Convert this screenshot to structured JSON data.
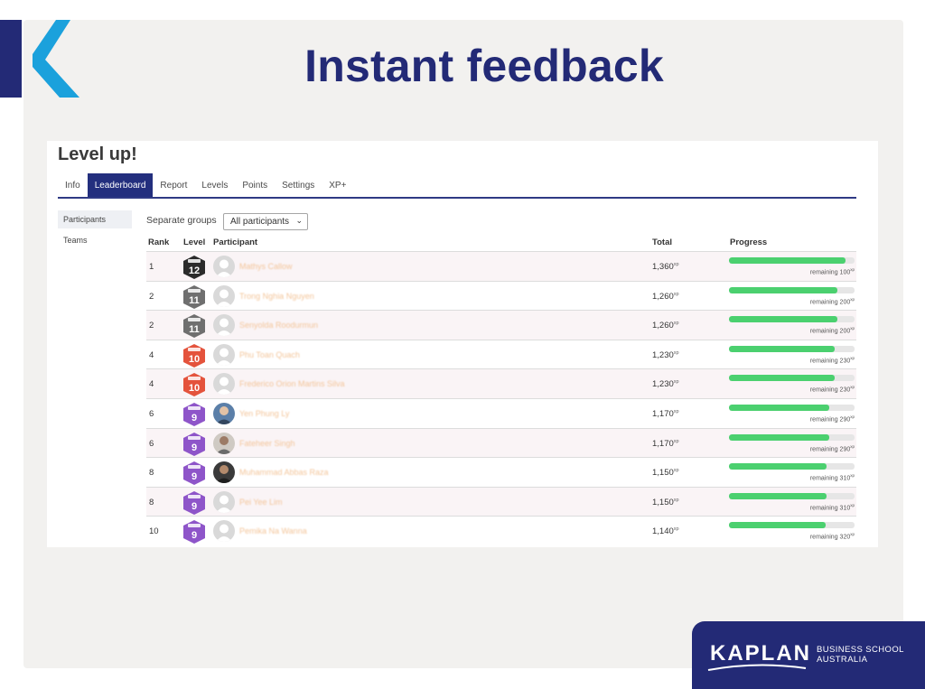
{
  "slide": {
    "title": "Instant feedback",
    "brand": {
      "wordmark": "KAPLAN",
      "subtitle_line1": "BUSINESS SCHOOL",
      "subtitle_line2": "AUSTRALIA",
      "navy": "#232a76",
      "cyan": "#1ba1dc"
    }
  },
  "app": {
    "heading": "Level up!",
    "tabs": [
      "Info",
      "Leaderboard",
      "Report",
      "Levels",
      "Points",
      "Settings",
      "XP+"
    ],
    "active_tab": "Leaderboard",
    "sidebar": [
      {
        "label": "Participants",
        "active": true
      },
      {
        "label": "Teams",
        "active": false
      }
    ],
    "groups": {
      "label": "Separate groups",
      "selected": "All participants",
      "chevron_icon": "chevron-down-icon"
    },
    "columns": {
      "rank": "Rank",
      "level": "Level",
      "participant": "Participant",
      "total": "Total",
      "progress": "Progress"
    },
    "xp_unit": "xp",
    "remaining_prefix": "remaining",
    "progress_color": "#4bd06f",
    "level_colors": {
      "12": "#2b2b2b",
      "11": "#6f6f6f",
      "10": "#e4533c",
      "9": "#8e55c9"
    },
    "rows": [
      {
        "rank": "1",
        "level": "12",
        "name": "Mathys Callow",
        "total": "1,360",
        "remaining": "100",
        "progress": 0.93,
        "avatar": "default"
      },
      {
        "rank": "2",
        "level": "11",
        "name": "Trong Nghia Nguyen",
        "total": "1,260",
        "remaining": "200",
        "progress": 0.86,
        "avatar": "default"
      },
      {
        "rank": "2",
        "level": "11",
        "name": "Senyolda Roodurmun",
        "total": "1,260",
        "remaining": "200",
        "progress": 0.86,
        "avatar": "default"
      },
      {
        "rank": "4",
        "level": "10",
        "name": "Phu Toan Quach",
        "total": "1,230",
        "remaining": "230",
        "progress": 0.84,
        "avatar": "default"
      },
      {
        "rank": "4",
        "level": "10",
        "name": "Frederico Orion Martins Silva",
        "total": "1,230",
        "remaining": "230",
        "progress": 0.84,
        "avatar": "default"
      },
      {
        "rank": "6",
        "level": "9",
        "name": "Yen Phung Ly",
        "total": "1,170",
        "remaining": "290",
        "progress": 0.8,
        "avatar": "photo-blue"
      },
      {
        "rank": "6",
        "level": "9",
        "name": "Fateheer Singh",
        "total": "1,170",
        "remaining": "290",
        "progress": 0.8,
        "avatar": "photo-grey"
      },
      {
        "rank": "8",
        "level": "9",
        "name": "Muhammad Abbas Raza",
        "total": "1,150",
        "remaining": "310",
        "progress": 0.78,
        "avatar": "photo-dark"
      },
      {
        "rank": "8",
        "level": "9",
        "name": "Pei Yee Lim",
        "total": "1,150",
        "remaining": "310",
        "progress": 0.78,
        "avatar": "default"
      },
      {
        "rank": "10",
        "level": "9",
        "name": "Pemika Na Wanna",
        "total": "1,140",
        "remaining": "320",
        "progress": 0.77,
        "avatar": "default"
      }
    ]
  }
}
